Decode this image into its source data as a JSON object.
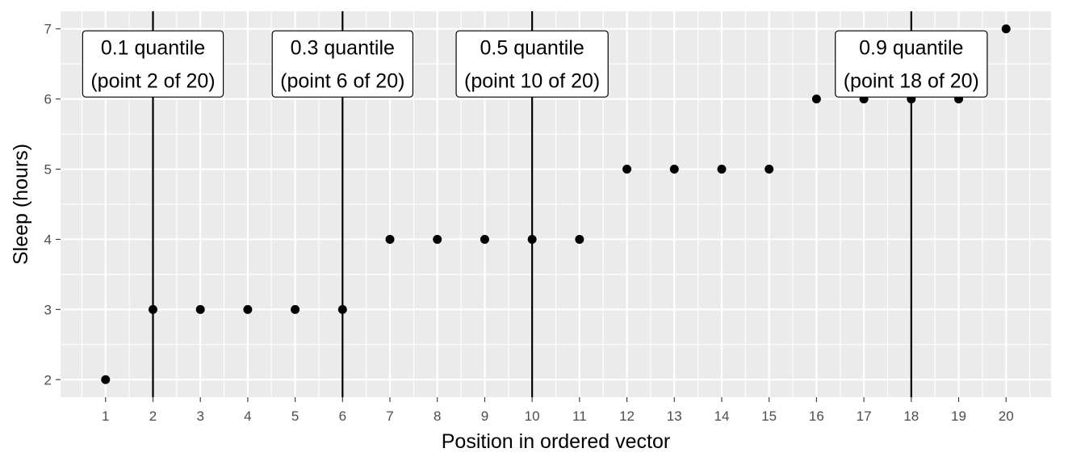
{
  "chart_data": {
    "type": "scatter",
    "xlabel": "Position in ordered vector",
    "ylabel": "Sleep (hours)",
    "xlim": [
      0.05,
      20.95
    ],
    "ylim": [
      1.75,
      7.25
    ],
    "x_ticks": [
      1,
      2,
      3,
      4,
      5,
      6,
      7,
      8,
      9,
      10,
      11,
      12,
      13,
      14,
      15,
      16,
      17,
      18,
      19,
      20
    ],
    "y_ticks": [
      2,
      3,
      4,
      5,
      6,
      7
    ],
    "grid": true,
    "colors": {
      "panel": "#ebebeb",
      "grid": "#ffffff",
      "point": "#000000",
      "line": "#000000"
    },
    "points": [
      {
        "x": 1,
        "y": 2
      },
      {
        "x": 2,
        "y": 3
      },
      {
        "x": 3,
        "y": 3
      },
      {
        "x": 4,
        "y": 3
      },
      {
        "x": 5,
        "y": 3
      },
      {
        "x": 6,
        "y": 3
      },
      {
        "x": 7,
        "y": 4
      },
      {
        "x": 8,
        "y": 4
      },
      {
        "x": 9,
        "y": 4
      },
      {
        "x": 10,
        "y": 4
      },
      {
        "x": 11,
        "y": 4
      },
      {
        "x": 12,
        "y": 5
      },
      {
        "x": 13,
        "y": 5
      },
      {
        "x": 14,
        "y": 5
      },
      {
        "x": 15,
        "y": 5
      },
      {
        "x": 16,
        "y": 6
      },
      {
        "x": 17,
        "y": 6
      },
      {
        "x": 18,
        "y": 6
      },
      {
        "x": 19,
        "y": 6
      },
      {
        "x": 20,
        "y": 7
      }
    ],
    "vlines": [
      2,
      6,
      10,
      18
    ],
    "annotations": [
      {
        "x": 2,
        "y": 6.5,
        "line1": "0.1 quantile",
        "line2": "(point 2 of 20)"
      },
      {
        "x": 6,
        "y": 6.5,
        "line1": "0.3 quantile",
        "line2": "(point 6 of 20)"
      },
      {
        "x": 10,
        "y": 6.5,
        "line1": "0.5 quantile",
        "line2": "(point 10 of 20)"
      },
      {
        "x": 18,
        "y": 6.5,
        "line1": "0.9 quantile",
        "line2": "(point 18 of 20)"
      }
    ]
  }
}
